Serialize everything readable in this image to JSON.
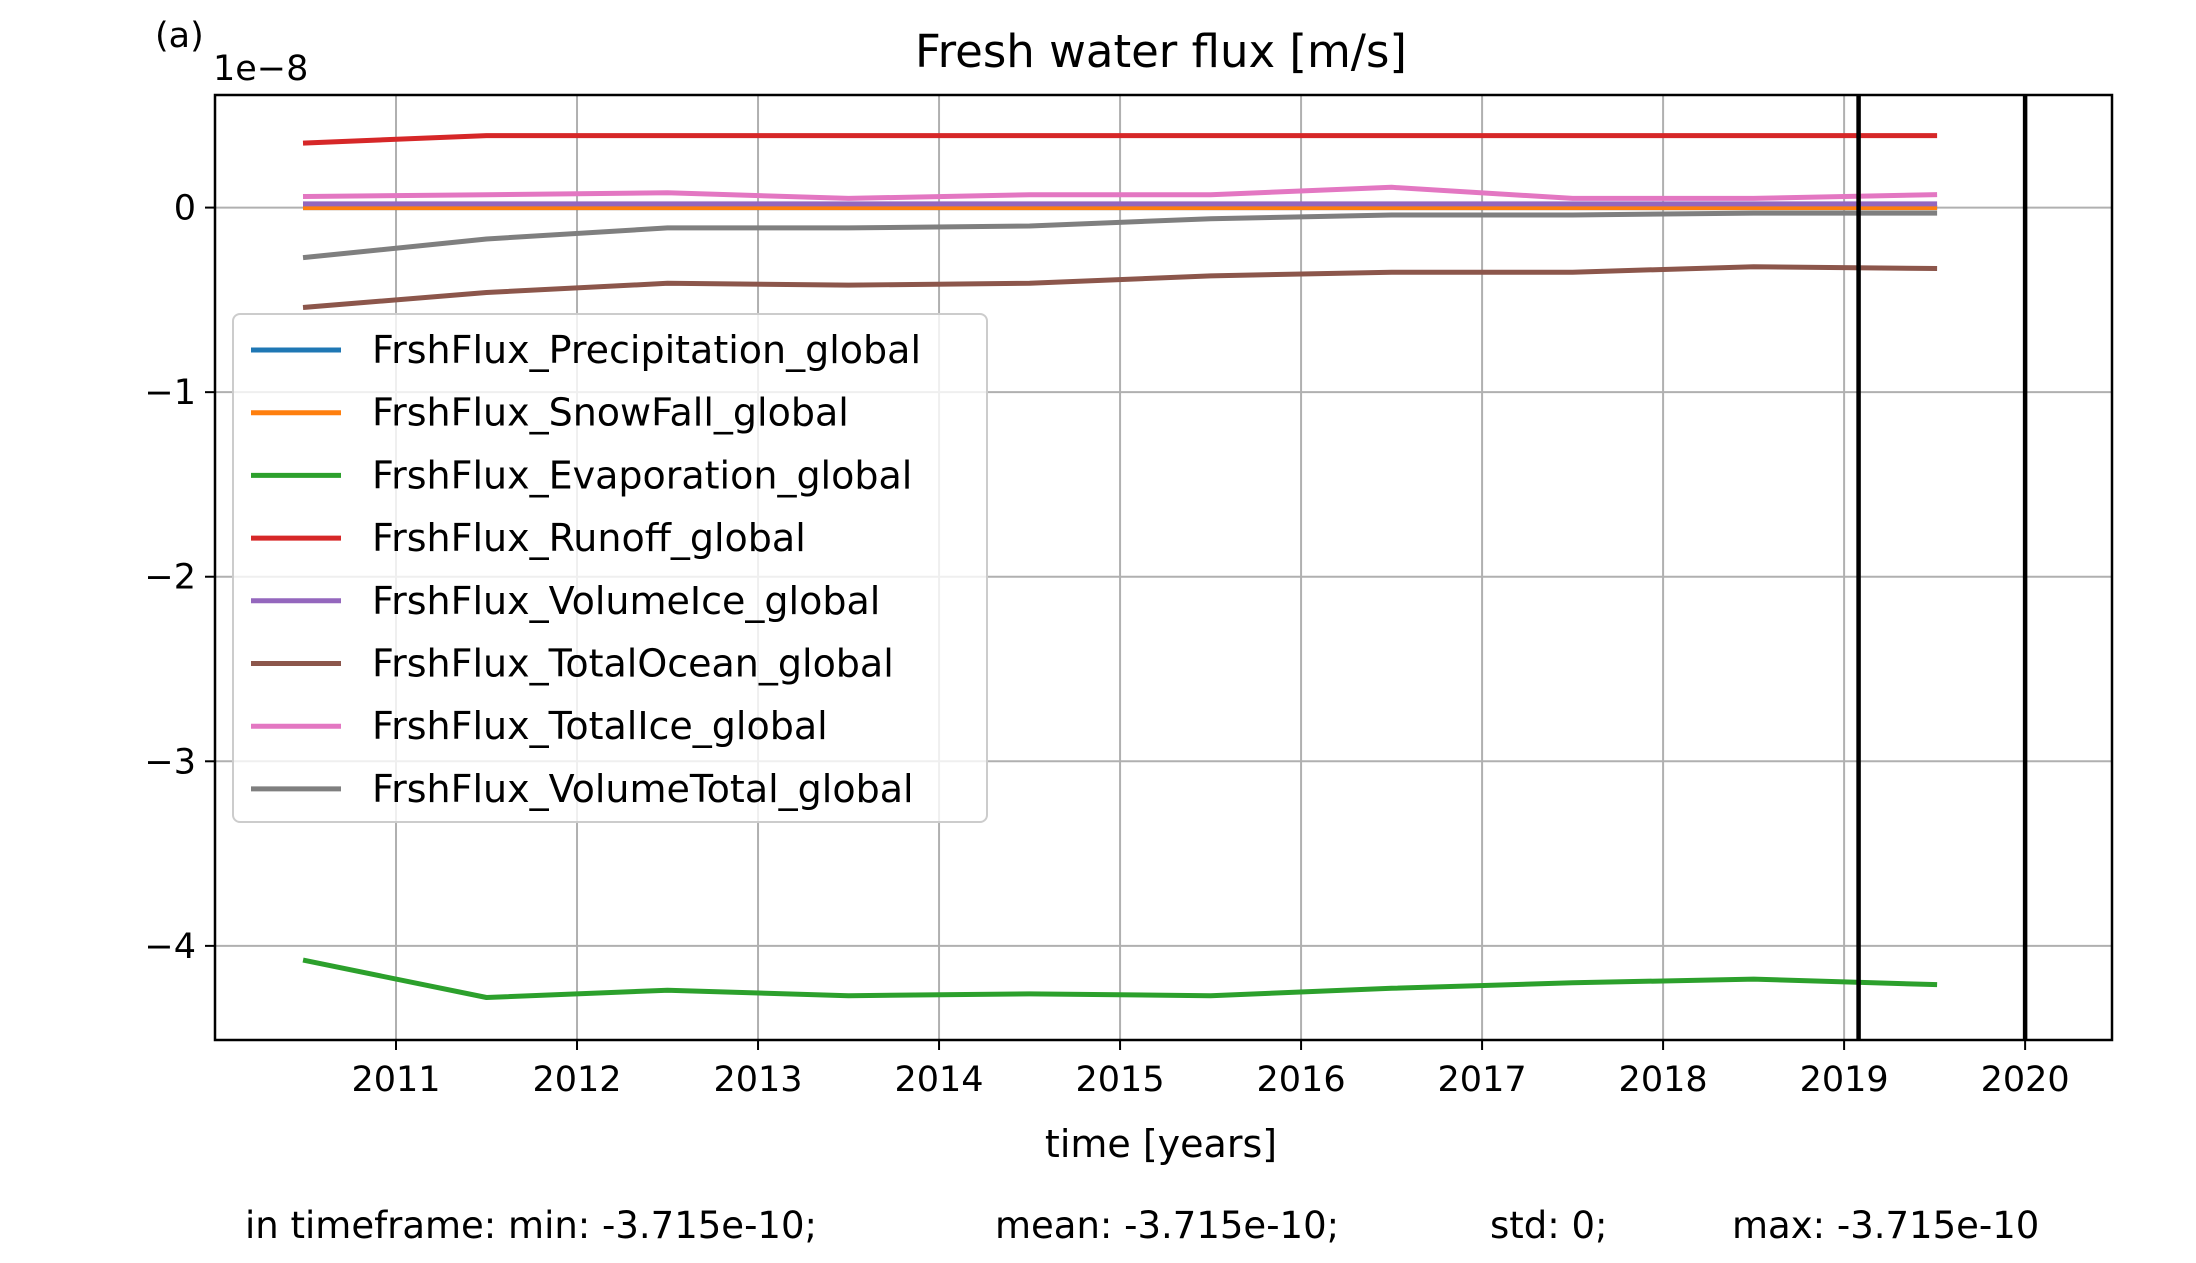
{
  "chart_data": {
    "type": "line",
    "panel_label": "(a)",
    "title": "Fresh water flux [m/s]",
    "xlabel": "time [years]",
    "ylabel": "",
    "y_offset_label": "1e−8",
    "xlim": [
      2010.0,
      2020.48
    ],
    "ylim": [
      -4.51,
      0.61
    ],
    "x_ticks": [
      2011,
      2012,
      2013,
      2014,
      2015,
      2016,
      2017,
      2018,
      2019,
      2020
    ],
    "y_ticks": [
      0,
      -1,
      -2,
      -3,
      -4
    ],
    "y_tick_labels": [
      "0",
      "−1",
      "−2",
      "−3",
      "−4"
    ],
    "grid": true,
    "legend_position": "center-left",
    "x": [
      2010.5,
      2011.5,
      2012.5,
      2013.5,
      2014.5,
      2015.5,
      2016.5,
      2017.5,
      2018.5,
      2019.5
    ],
    "series": [
      {
        "name": "FrshFlux_Precipitation_global",
        "color": "#1f77b4",
        "values": [
          0.0,
          0.0,
          0.0,
          0.0,
          0.0,
          0.0,
          0.0,
          0.0,
          0.0,
          0.0
        ]
      },
      {
        "name": "FrshFlux_SnowFall_global",
        "color": "#ff7f0e",
        "values": [
          0.0,
          0.0,
          0.0,
          0.0,
          0.0,
          0.0,
          0.0,
          0.0,
          0.0,
          0.0
        ]
      },
      {
        "name": "FrshFlux_Evaporation_global",
        "color": "#2ca02c",
        "values": [
          -4.08,
          -4.28,
          -4.24,
          -4.27,
          -4.26,
          -4.27,
          -4.23,
          -4.2,
          -4.18,
          -4.21
        ]
      },
      {
        "name": "FrshFlux_Runoff_global",
        "color": "#d62728",
        "values": [
          0.35,
          0.39,
          0.39,
          0.39,
          0.39,
          0.39,
          0.39,
          0.39,
          0.39,
          0.39
        ]
      },
      {
        "name": "FrshFlux_VolumeIce_global",
        "color": "#9467bd",
        "values": [
          0.02,
          0.02,
          0.02,
          0.02,
          0.02,
          0.02,
          0.02,
          0.02,
          0.02,
          0.02
        ]
      },
      {
        "name": "FrshFlux_TotalOcean_global",
        "color": "#8c564b",
        "values": [
          -0.54,
          -0.46,
          -0.41,
          -0.42,
          -0.41,
          -0.37,
          -0.35,
          -0.35,
          -0.32,
          -0.33
        ]
      },
      {
        "name": "FrshFlux_TotalIce_global",
        "color": "#e377c2",
        "values": [
          0.06,
          0.07,
          0.08,
          0.05,
          0.07,
          0.07,
          0.11,
          0.05,
          0.05,
          0.07
        ]
      },
      {
        "name": "FrshFlux_VolumeTotal_global",
        "color": "#7f7f7f",
        "values": [
          -0.27,
          -0.17,
          -0.11,
          -0.11,
          -0.1,
          -0.06,
          -0.04,
          -0.04,
          -0.03,
          -0.03
        ]
      }
    ],
    "vertical_lines": [
      2019.08,
      2020.0
    ],
    "vertical_line_color": "#000000"
  },
  "stats": {
    "min": "in timeframe: min: -3.715e-10;",
    "mean": "mean: -3.715e-10;",
    "std": "std: 0;",
    "max": "max: -3.715e-10"
  }
}
